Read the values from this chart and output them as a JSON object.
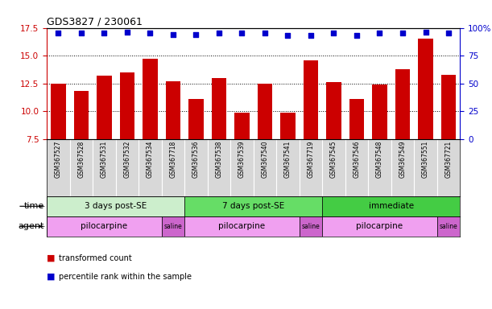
{
  "title": "GDS3827 / 230061",
  "samples": [
    "GSM367527",
    "GSM367528",
    "GSM367531",
    "GSM367532",
    "GSM367534",
    "GSM367718",
    "GSM367536",
    "GSM367538",
    "GSM367539",
    "GSM367540",
    "GSM367541",
    "GSM367719",
    "GSM367545",
    "GSM367546",
    "GSM367548",
    "GSM367549",
    "GSM367551",
    "GSM367721"
  ],
  "bar_values": [
    12.5,
    11.8,
    13.2,
    13.5,
    14.7,
    12.7,
    11.1,
    13.0,
    9.9,
    12.5,
    9.9,
    14.6,
    12.6,
    11.1,
    12.4,
    13.8,
    16.5,
    13.3
  ],
  "dot_values": [
    17.05,
    17.05,
    17.05,
    17.1,
    17.05,
    16.9,
    16.88,
    17.05,
    17.05,
    17.05,
    16.82,
    16.82,
    17.05,
    16.82,
    17.05,
    17.05,
    17.1,
    17.05
  ],
  "bar_color": "#cc0000",
  "dot_color": "#0000cc",
  "ylim_left": [
    7.5,
    17.5
  ],
  "yticks_left": [
    7.5,
    10.0,
    12.5,
    15.0,
    17.5
  ],
  "yticks_right": [
    0,
    25,
    50,
    75,
    100
  ],
  "ylim_right": [
    0,
    100
  ],
  "plot_bg": "#ffffff",
  "time_groups": [
    {
      "label": "3 days post-SE",
      "start": 0,
      "end": 6,
      "color": "#cceecc"
    },
    {
      "label": "7 days post-SE",
      "start": 6,
      "end": 12,
      "color": "#66dd66"
    },
    {
      "label": "immediate",
      "start": 12,
      "end": 18,
      "color": "#44cc44"
    }
  ],
  "agent_groups": [
    {
      "label": "pilocarpine",
      "start": 0,
      "end": 5,
      "color": "#f0a0f0"
    },
    {
      "label": "saline",
      "start": 5,
      "end": 6,
      "color": "#cc66cc"
    },
    {
      "label": "pilocarpine",
      "start": 6,
      "end": 11,
      "color": "#f0a0f0"
    },
    {
      "label": "saline",
      "start": 11,
      "end": 12,
      "color": "#cc66cc"
    },
    {
      "label": "pilocarpine",
      "start": 12,
      "end": 17,
      "color": "#f0a0f0"
    },
    {
      "label": "saline",
      "start": 17,
      "end": 18,
      "color": "#cc66cc"
    }
  ],
  "legend_items": [
    {
      "label": "transformed count",
      "color": "#cc0000"
    },
    {
      "label": "percentile rank within the sample",
      "color": "#0000cc"
    }
  ],
  "title_fontsize": 9,
  "tick_fontsize": 7.5,
  "label_fontsize": 5.5,
  "row_label_fontsize": 8,
  "bar_width": 0.65,
  "sample_bg": "#d8d8d8"
}
